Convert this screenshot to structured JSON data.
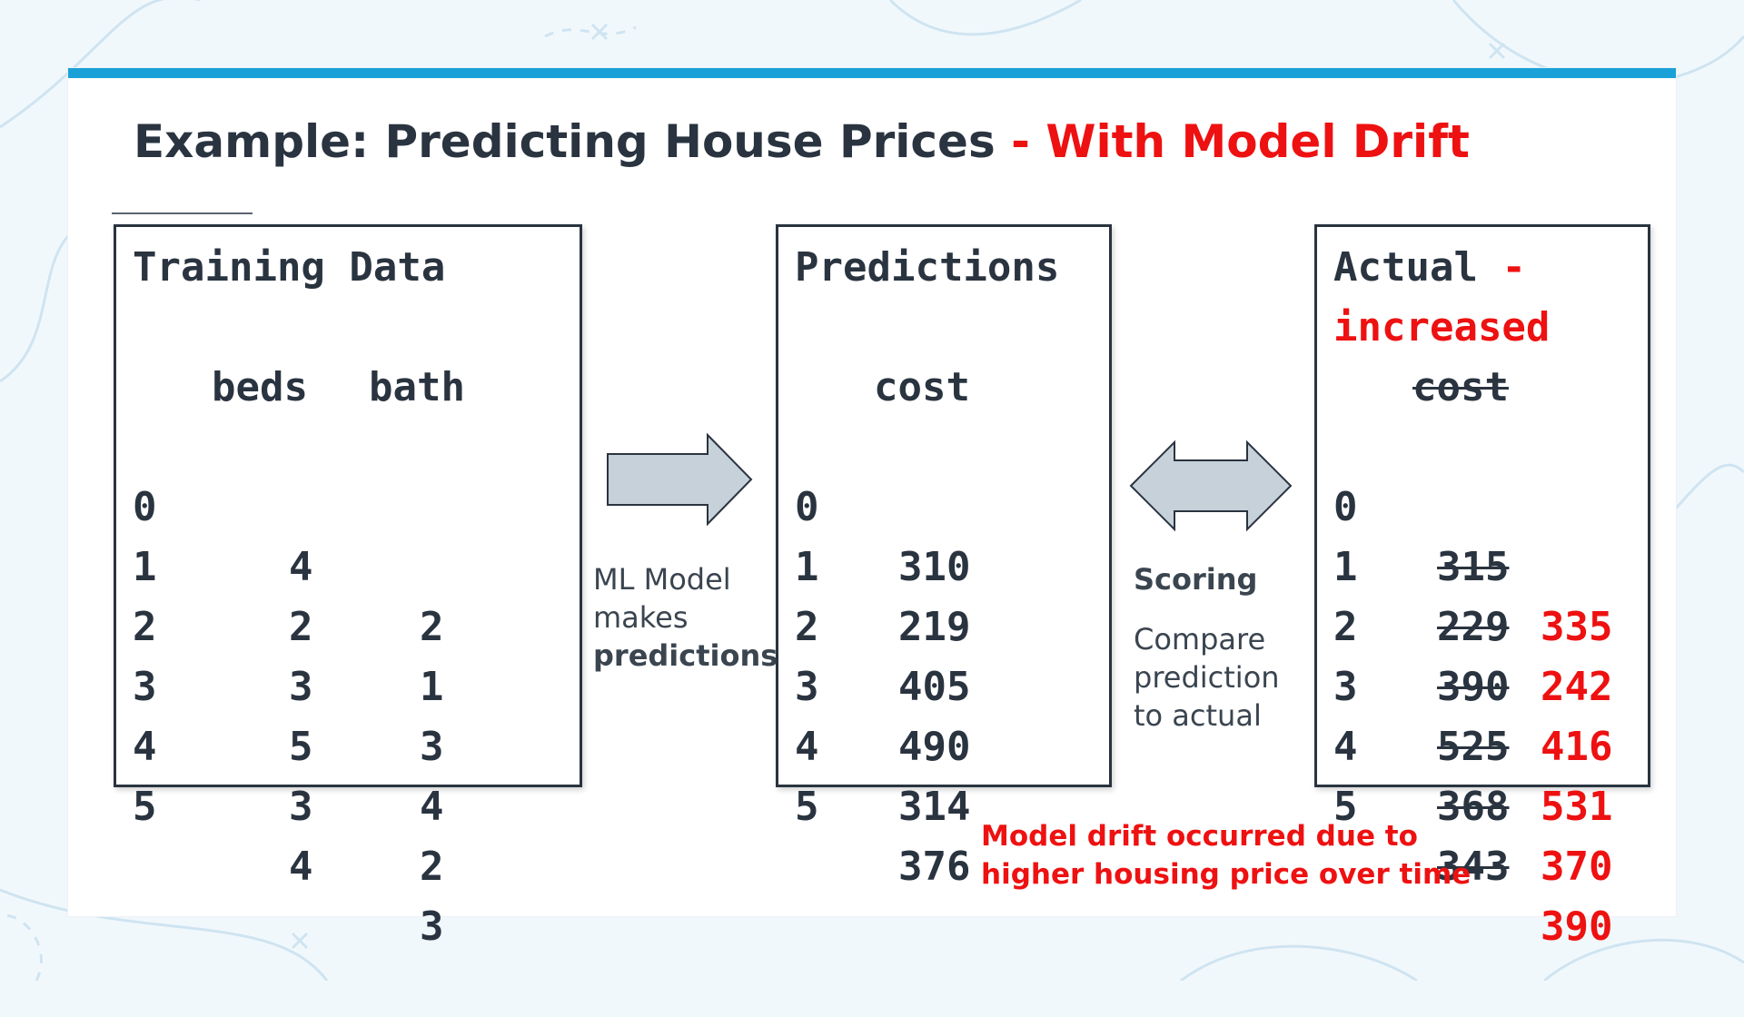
{
  "title": {
    "main": "Example: Predicting House Prices",
    "sep": "-",
    "highlight": "With Model Drift"
  },
  "training": {
    "heading": "Training Data",
    "col_beds": "beds",
    "col_bath": "bath",
    "rows": [
      {
        "idx": "0",
        "beds": "4",
        "bath": "2"
      },
      {
        "idx": "1",
        "beds": "2",
        "bath": "1"
      },
      {
        "idx": "2",
        "beds": "3",
        "bath": "3"
      },
      {
        "idx": "3",
        "beds": "5",
        "bath": "4"
      },
      {
        "idx": "4",
        "beds": "3",
        "bath": "2"
      },
      {
        "idx": "5",
        "beds": "4",
        "bath": "3"
      }
    ]
  },
  "ml_note": {
    "line1": "ML Model",
    "line2": "makes",
    "line3": "predictions"
  },
  "predictions": {
    "heading": "Predictions",
    "col_cost": "cost",
    "rows": [
      {
        "idx": "0",
        "cost": "310"
      },
      {
        "idx": "1",
        "cost": "219"
      },
      {
        "idx": "2",
        "cost": "405"
      },
      {
        "idx": "3",
        "cost": "490"
      },
      {
        "idx": "4",
        "cost": "314"
      },
      {
        "idx": "5",
        "cost": "376"
      }
    ]
  },
  "scoring": {
    "label": "Scoring",
    "line1": "Compare",
    "line2": "prediction",
    "line3": "to actual"
  },
  "actual": {
    "heading": "Actual",
    "dash": "-",
    "increased": "increased",
    "col_cost": "cost",
    "rows": [
      {
        "idx": "0",
        "old": "315",
        "new": "335"
      },
      {
        "idx": "1",
        "old": "229",
        "new": "242"
      },
      {
        "idx": "2",
        "old": "390",
        "new": "416"
      },
      {
        "idx": "3",
        "old": "525",
        "new": "531"
      },
      {
        "idx": "4",
        "old": "368",
        "new": "370"
      },
      {
        "idx": "5",
        "old": "343",
        "new": "390"
      }
    ]
  },
  "drift_note": {
    "line1": "Model drift occurred due to",
    "line2": "higher housing price over time"
  },
  "colors": {
    "accent": "#1aa1d8",
    "highlight": "#ee1111",
    "text": "#2a3440",
    "arrow_fill": "#c7d1da"
  }
}
